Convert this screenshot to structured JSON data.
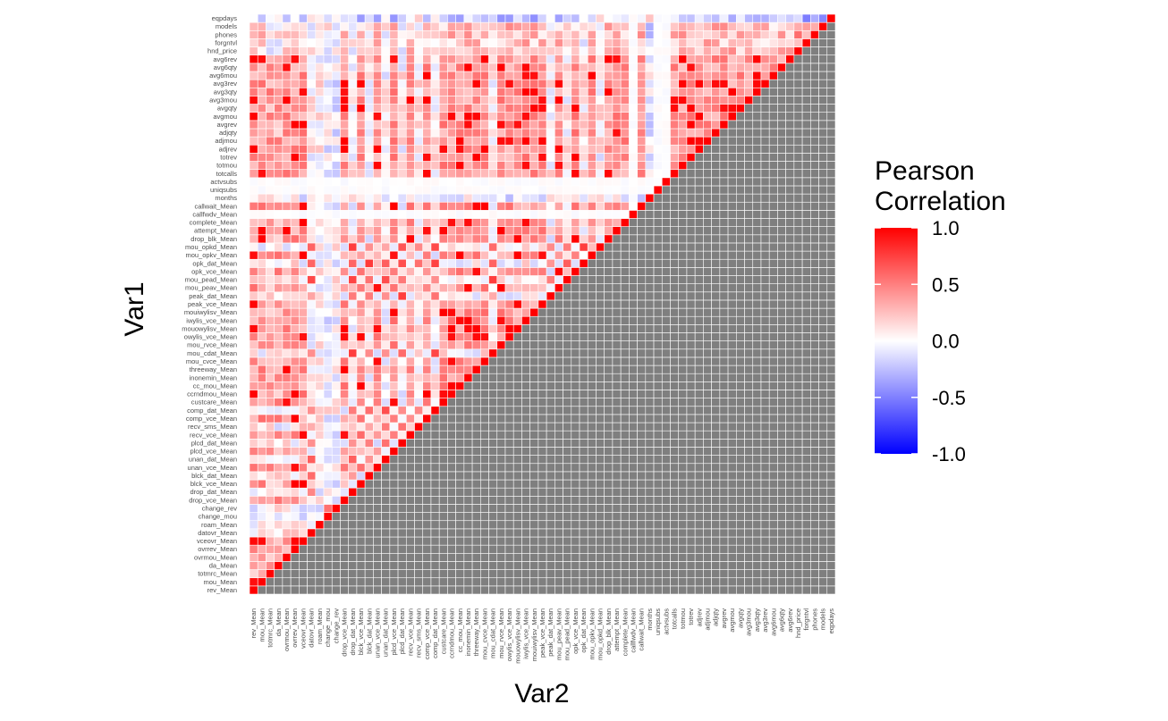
{
  "chart_data": {
    "type": "heatmap",
    "subtype": "correlation-lower-triangle",
    "xlabel": "Var2",
    "ylabel": "Var1",
    "variables": [
      "rev_Mean",
      "mou_Mean",
      "totmrc_Mean",
      "da_Mean",
      "ovrmou_Mean",
      "ovrrev_Mean",
      "vceovr_Mean",
      "datovr_Mean",
      "roam_Mean",
      "change_mou",
      "change_rev",
      "drop_vce_Mean",
      "drop_dat_Mean",
      "blck_vce_Mean",
      "blck_dat_Mean",
      "unan_vce_Mean",
      "unan_dat_Mean",
      "plcd_vce_Mean",
      "plcd_dat_Mean",
      "recv_vce_Mean",
      "recv_sms_Mean",
      "comp_vce_Mean",
      "comp_dat_Mean",
      "custcare_Mean",
      "ccrndmou_Mean",
      "cc_mou_Mean",
      "inonemin_Mean",
      "threeway_Mean",
      "mou_cvce_Mean",
      "mou_cdat_Mean",
      "mou_rvce_Mean",
      "owylis_vce_Mean",
      "mouowylisv_Mean",
      "iwylis_vce_Mean",
      "mouiwylisv_Mean",
      "peak_vce_Mean",
      "peak_dat_Mean",
      "mou_peav_Mean",
      "mou_pead_Mean",
      "opk_vce_Mean",
      "opk_dat_Mean",
      "mou_opkv_Mean",
      "mou_opkd_Mean",
      "drop_blk_Mean",
      "attempt_Mean",
      "complete_Mean",
      "callfwdv_Mean",
      "callwait_Mean",
      "months",
      "uniqsubs",
      "actvsubs",
      "totcalls",
      "totmou",
      "totrev",
      "adjrev",
      "adjmou",
      "adjqty",
      "avgrev",
      "avgmou",
      "avgqty",
      "avg3mou",
      "avg3qty",
      "avg3rev",
      "avg6mou",
      "avg6qty",
      "avg6rev",
      "hnd_price",
      "forgntvl",
      "phones",
      "models",
      "eqpdays"
    ],
    "groups": {
      "usage": [
        "rev_Mean",
        "mou_Mean",
        "ovrmou_Mean",
        "ovrrev_Mean",
        "vceovr_Mean",
        "drop_vce_Mean",
        "blck_vce_Mean",
        "unan_vce_Mean",
        "plcd_vce_Mean",
        "recv_vce_Mean",
        "comp_vce_Mean",
        "custcare_Mean",
        "ccrndmou_Mean",
        "cc_mou_Mean",
        "inonemin_Mean",
        "threeway_Mean",
        "mou_cvce_Mean",
        "mou_rvce_Mean",
        "owylis_vce_Mean",
        "mouowylisv_Mean",
        "iwylis_vce_Mean",
        "mouiwylisv_Mean",
        "peak_vce_Mean",
        "mou_peav_Mean",
        "opk_vce_Mean",
        "mou_opkv_Mean",
        "drop_blk_Mean",
        "attempt_Mean",
        "complete_Mean",
        "callwait_Mean",
        "totcalls",
        "totmou",
        "totrev",
        "adjrev",
        "adjmou",
        "adjqty",
        "avgrev",
        "avgmou",
        "avgqty",
        "avg3mou",
        "avg3qty",
        "avg3rev",
        "avg6mou",
        "avg6qty",
        "avg6rev"
      ],
      "mrc": [
        "totmrc_Mean",
        "da_Mean"
      ],
      "data": [
        "datovr_Mean",
        "drop_dat_Mean",
        "blck_dat_Mean",
        "unan_dat_Mean",
        "plcd_dat_Mean",
        "comp_dat_Mean",
        "mou_cdat_Mean",
        "peak_dat_Mean",
        "mou_pead_Mean",
        "opk_dat_Mean",
        "mou_opkd_Mean"
      ],
      "roam": [
        "roam_Mean"
      ],
      "change": [
        "change_mou",
        "change_rev"
      ],
      "sms": [
        "recv_sms_Mean"
      ],
      "neutral": [
        "callfwdv_Mean",
        "uniqsubs",
        "actvsubs"
      ],
      "months": [
        "months"
      ],
      "device": [
        "hnd_price",
        "forgntvl",
        "phones",
        "models"
      ],
      "eqp": [
        "eqpdays"
      ]
    },
    "fill_range": [
      -1,
      1
    ],
    "upper_triangle_color": "#7f7f7f",
    "legend": {
      "title_line1": "Pearson",
      "title_line2": "Correlation",
      "ticks": [
        "1.0",
        "0.5",
        "0.0",
        "-0.5",
        "-1.0"
      ],
      "tick_values": [
        1,
        0.5,
        0,
        -0.5,
        -1
      ],
      "low_color": "#0000ff",
      "mid_color": "#ffffff",
      "high_color": "#ff0000",
      "placement": "right"
    }
  }
}
